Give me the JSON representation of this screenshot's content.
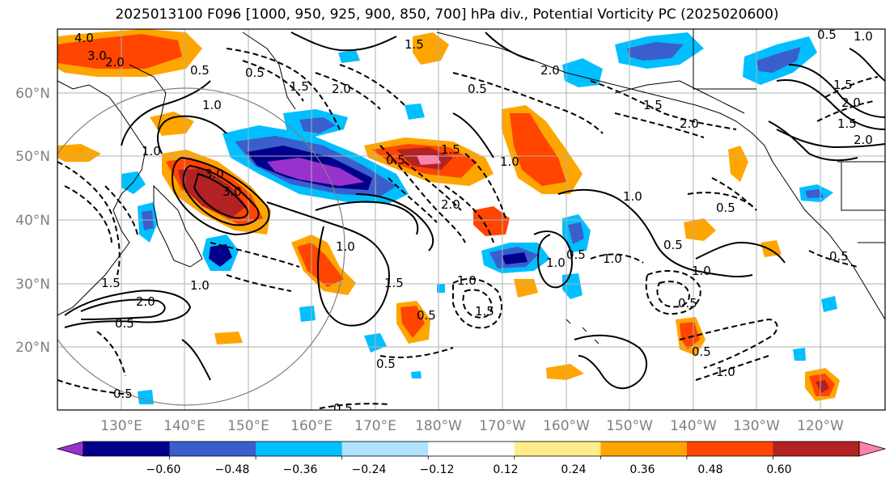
{
  "title": "2025013100 F096 [1000, 950, 925, 900, 850, 700] hPa div., Potential Vorticity PC (2025020600)",
  "lat_ticks": [
    "20°N",
    "30°N",
    "40°N",
    "50°N",
    "60°N"
  ],
  "lon_ticks": [
    "130°E",
    "140°E",
    "150°E",
    "160°E",
    "170°E",
    "180°W",
    "170°W",
    "160°W",
    "150°W",
    "140°W",
    "130°W",
    "120°W"
  ],
  "colorbar": {
    "tick_labels": [
      "−0.60",
      "−0.48",
      "−0.36",
      "−0.24",
      "−0.12",
      "0.12",
      "0.24",
      "0.36",
      "0.48",
      "0.60"
    ],
    "colors": [
      "#9932cc",
      "#00008b",
      "#3a5fcd",
      "#00bfff",
      "#b0e2ff",
      "#ffffff",
      "#ffec8b",
      "#ffa500",
      "#ff4500",
      "#b22222",
      "#ff82ab"
    ]
  },
  "contour_labels": [
    "4.0",
    "3.0",
    "2.0",
    "3.0",
    "3.0",
    "0.5",
    "1.0",
    "1.0",
    "0.5",
    "1.5",
    "2.0",
    "1.5",
    "2.0",
    "1.0",
    "0.5",
    "1.0",
    "1.5",
    "2.0",
    "0.5",
    "0.5",
    "1.0",
    "2.0",
    "1.0",
    "1.5",
    "2.0",
    "2.0",
    "1.5",
    "0.5",
    "1.0",
    "1.0",
    "1.0",
    "0.5",
    "0.5",
    "1.0",
    "1.5",
    "0.5",
    "2.0",
    "1.5",
    "1.5",
    "0.5",
    "0.5",
    "1.5",
    "1.0",
    "0.5",
    "0.5",
    "1.0",
    "0.5",
    "0.5",
    "0.5"
  ]
}
